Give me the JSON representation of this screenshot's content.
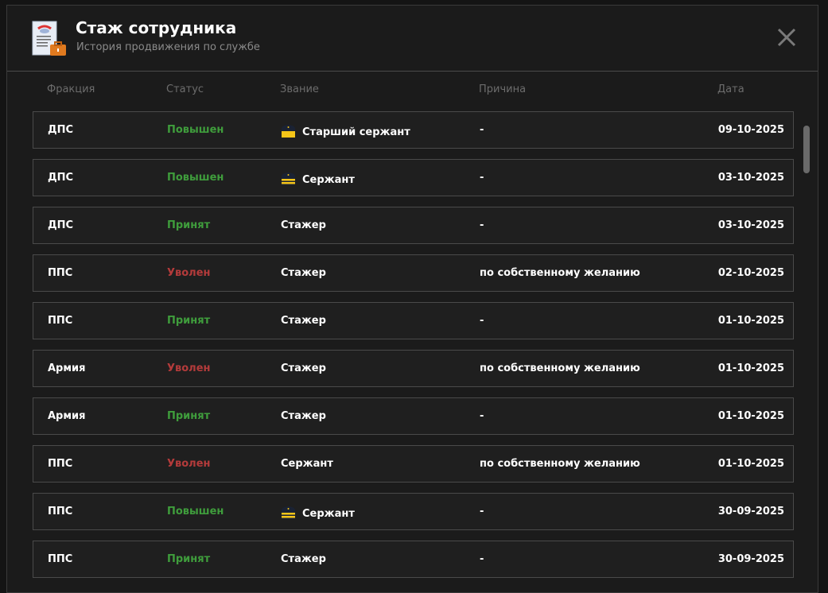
{
  "header": {
    "title": "Стаж сотрудника",
    "subtitle": "История продвижения по службе",
    "icon": "document-briefcase-icon",
    "close_icon": "close-icon"
  },
  "columns": [
    "Фракция",
    "Статус",
    "Звание",
    "Причина",
    "Дата"
  ],
  "colors": {
    "promoted": "#3f9d3c",
    "hired": "#3f9d3c",
    "fired": "#b43b3b",
    "rank_badge": "#f5c518"
  },
  "rows": [
    {
      "faction": "ДПС",
      "status": "Повышен",
      "status_type": "green",
      "rank": "Старший сержант",
      "rank_icon": "senior-sergeant",
      "reason": "-",
      "date": "09-10-2025"
    },
    {
      "faction": "ДПС",
      "status": "Повышен",
      "status_type": "green",
      "rank": "Сержант",
      "rank_icon": "sergeant",
      "reason": "-",
      "date": "03-10-2025"
    },
    {
      "faction": "ДПС",
      "status": "Принят",
      "status_type": "green",
      "rank": "Стажер",
      "rank_icon": "",
      "reason": "-",
      "date": "03-10-2025"
    },
    {
      "faction": "ППС",
      "status": "Уволен",
      "status_type": "red",
      "rank": "Стажер",
      "rank_icon": "",
      "reason": "по собственному желанию",
      "date": "02-10-2025"
    },
    {
      "faction": "ППС",
      "status": "Принят",
      "status_type": "green",
      "rank": "Стажер",
      "rank_icon": "",
      "reason": "-",
      "date": "01-10-2025"
    },
    {
      "faction": "Армия",
      "status": "Уволен",
      "status_type": "red",
      "rank": "Стажер",
      "rank_icon": "",
      "reason": "по собственному желанию",
      "date": "01-10-2025"
    },
    {
      "faction": "Армия",
      "status": "Принят",
      "status_type": "green",
      "rank": "Стажер",
      "rank_icon": "",
      "reason": "-",
      "date": "01-10-2025"
    },
    {
      "faction": "ППС",
      "status": "Уволен",
      "status_type": "red",
      "rank": "Сержант",
      "rank_icon": "",
      "reason": "по собственному желанию",
      "date": "01-10-2025"
    },
    {
      "faction": "ППС",
      "status": "Повышен",
      "status_type": "green",
      "rank": "Сержант",
      "rank_icon": "sergeant",
      "reason": "-",
      "date": "30-09-2025"
    },
    {
      "faction": "ППС",
      "status": "Принят",
      "status_type": "green",
      "rank": "Стажер",
      "rank_icon": "",
      "reason": "-",
      "date": "30-09-2025"
    }
  ]
}
